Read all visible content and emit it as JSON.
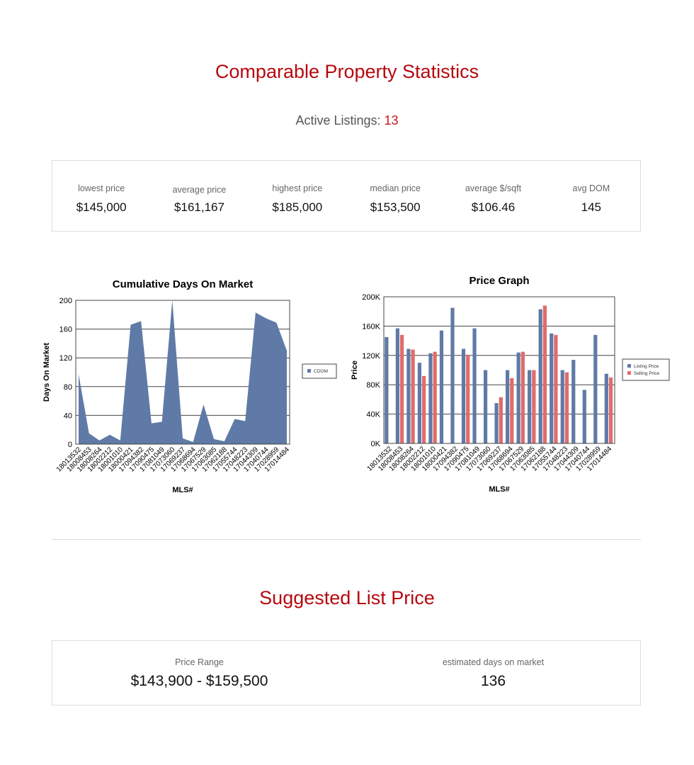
{
  "title": "Comparable Property Statistics",
  "active": {
    "label": "Active Listings:",
    "value": "13"
  },
  "stats": [
    {
      "label": "lowest price",
      "value": "$145,000"
    },
    {
      "label": "average price",
      "value": "$161,167"
    },
    {
      "label": "highest price",
      "value": "$185,000"
    },
    {
      "label": "median price",
      "value": "$153,500"
    },
    {
      "label": "average $/sqft",
      "value": "$106.46"
    },
    {
      "label": "avg DOM",
      "value": "145"
    }
  ],
  "suggested": {
    "title": "Suggested List Price",
    "range_label": "Price Range",
    "range_value": "$143,900 - $159,500",
    "dom_label": "estimated days on market",
    "dom_value": "136"
  },
  "chart_data": [
    {
      "type": "area",
      "title": "Cumulative Days On Market",
      "xlabel": "MLS#",
      "ylabel": "Days On Market",
      "ylim": [
        0,
        200
      ],
      "yticks": [
        0,
        40,
        80,
        120,
        160,
        200
      ],
      "grid": true,
      "legend": "right",
      "categories": [
        "18013532",
        "18008453",
        "18008264",
        "18002212",
        "18001010",
        "18000421",
        "17094382",
        "17090475",
        "17081049",
        "17073060",
        "17069237",
        "17068694",
        "17067529",
        "17063085",
        "17062188",
        "17055744",
        "17048223",
        "17044309",
        "17040744",
        "17028959",
        "17014484"
      ],
      "series": [
        {
          "name": "CDOM",
          "color": "#5f7aa6",
          "values": [
            97,
            15,
            5,
            13,
            5,
            166,
            171,
            29,
            31,
            200,
            8,
            3,
            55,
            7,
            4,
            35,
            32,
            183,
            175,
            169,
            130
          ]
        }
      ]
    },
    {
      "type": "bar",
      "title": "Price Graph",
      "xlabel": "MLS#",
      "ylabel": "Price",
      "ylim": [
        0,
        200000
      ],
      "yticks": [
        0,
        40000,
        80000,
        120000,
        160000,
        200000
      ],
      "ytick_labels": [
        "0K",
        "40K",
        "80K",
        "120K",
        "160K",
        "200K"
      ],
      "grid": true,
      "legend": "right",
      "categories": [
        "18013532",
        "18008453",
        "18008264",
        "18002212",
        "18001010",
        "18000421",
        "17094382",
        "17090475",
        "17081049",
        "17073060",
        "17069237",
        "17068694",
        "17067529",
        "17063085",
        "17062188",
        "17055744",
        "17048223",
        "17044309",
        "17040744",
        "17028959",
        "17014484"
      ],
      "series": [
        {
          "name": "Listing Price",
          "color": "#5f7aa6",
          "values": [
            145000,
            157000,
            129000,
            110000,
            123000,
            154000,
            185000,
            129000,
            157000,
            100000,
            55000,
            100000,
            124000,
            100000,
            183000,
            150000,
            100000,
            114000,
            73000,
            148000,
            95000
          ]
        },
        {
          "name": "Selling Price",
          "color": "#e06c6a",
          "values": [
            null,
            148000,
            128000,
            92000,
            125000,
            null,
            null,
            121000,
            null,
            null,
            63000,
            89000,
            125000,
            100000,
            188000,
            148000,
            97000,
            null,
            null,
            null,
            90000
          ]
        }
      ]
    }
  ]
}
